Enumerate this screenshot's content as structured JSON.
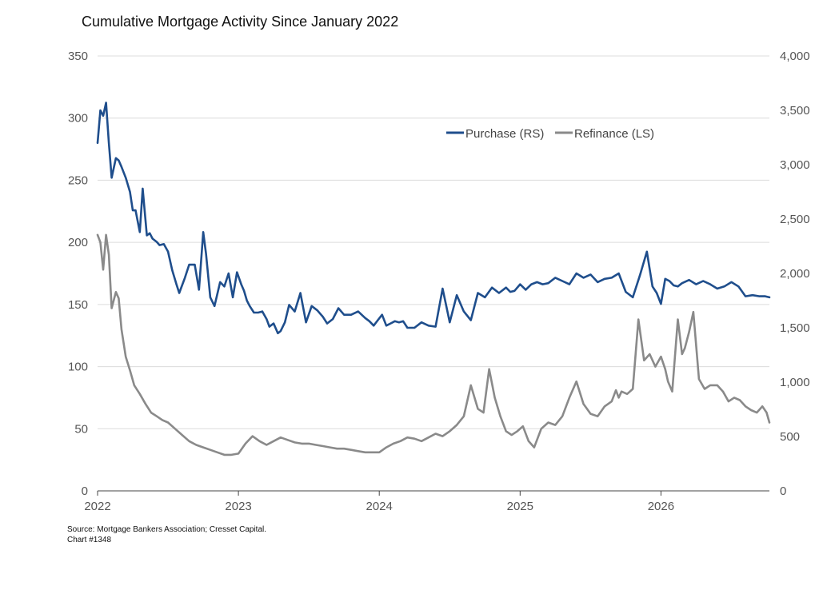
{
  "title": "Cumulative Mortgage Activity Since January 2022",
  "source": "Source: Mortgage Bankers Association; Cresset Capital.",
  "chart_number": "Chart #1348",
  "legend": {
    "purchase": "Purchase (RS)",
    "refinance": "Refinance (LS)",
    "position": "top-right"
  },
  "colors": {
    "purchase": "#1f4e8c",
    "refinance": "#8a8a8a",
    "grid": "#dcdcdc",
    "axis": "#555555"
  },
  "chart_data": {
    "type": "line",
    "title": "Cumulative Mortgage Activity Since January 2022",
    "x_ticks": [
      "2022",
      "2023",
      "2024",
      "2025",
      "2026"
    ],
    "xlim": [
      2022.0,
      2026.77
    ],
    "left_axis": {
      "ticks": [
        "0",
        "50",
        "100",
        "150",
        "200",
        "250",
        "300",
        "350"
      ],
      "ylim": [
        0,
        350
      ]
    },
    "right_axis": {
      "ticks": [
        "0",
        "500",
        "1,000",
        "1,500",
        "2,000",
        "2,500",
        "3,000",
        "3,500",
        "4,000"
      ],
      "ylim": [
        0,
        4000
      ]
    },
    "grid": "horizontal",
    "series": [
      {
        "name": "Purchase (RS)",
        "axis": "right",
        "x": [
          2022.0,
          2022.02,
          2022.04,
          2022.06,
          2022.08,
          2022.1,
          2022.13,
          2022.15,
          2022.17,
          2022.2,
          2022.23,
          2022.25,
          2022.27,
          2022.3,
          2022.32,
          2022.35,
          2022.37,
          2022.39,
          2022.42,
          2022.44,
          2022.47,
          2022.5,
          2022.53,
          2022.56,
          2022.58,
          2022.62,
          2022.65,
          2022.69,
          2022.72,
          2022.75,
          2022.77,
          2022.8,
          2022.83,
          2022.87,
          2022.9,
          2022.93,
          2022.96,
          2022.99,
          2023.02,
          2023.04,
          2023.06,
          2023.08,
          2023.11,
          2023.14,
          2023.17,
          2023.2,
          2023.22,
          2023.25,
          2023.28,
          2023.3,
          2023.33,
          2023.36,
          2023.4,
          2023.44,
          2023.48,
          2023.52,
          2023.56,
          2023.6,
          2023.63,
          2023.67,
          2023.71,
          2023.75,
          2023.8,
          2023.85,
          2023.9,
          2023.93,
          2023.96,
          2023.99,
          2024.02,
          2024.05,
          2024.08,
          2024.11,
          2024.14,
          2024.17,
          2024.2,
          2024.25,
          2024.3,
          2024.35,
          2024.4,
          2024.45,
          2024.5,
          2024.55,
          2024.6,
          2024.65,
          2024.7,
          2024.75,
          2024.8,
          2024.85,
          2024.9,
          2024.93,
          2024.96,
          2025.0,
          2025.04,
          2025.08,
          2025.12,
          2025.16,
          2025.2,
          2025.25,
          2025.3,
          2025.35,
          2025.4,
          2025.45,
          2025.5,
          2025.55,
          2025.6,
          2025.65,
          2025.7,
          2025.75,
          2025.8,
          2025.85,
          2025.9,
          2025.94,
          2025.97,
          2026.0,
          2026.03,
          2026.06,
          2026.09,
          2026.12,
          2026.15,
          2026.2,
          2026.25,
          2026.3,
          2026.35,
          2026.4,
          2026.45,
          2026.5,
          2026.55,
          2026.6,
          2026.65,
          2026.7,
          2026.74,
          2026.77
        ],
        "y": [
          3200,
          3500,
          3450,
          3570,
          3200,
          2880,
          3060,
          3040,
          2980,
          2880,
          2750,
          2580,
          2580,
          2380,
          2780,
          2350,
          2370,
          2320,
          2290,
          2260,
          2270,
          2200,
          2030,
          1900,
          1820,
          1960,
          2080,
          2080,
          1850,
          2380,
          2180,
          1780,
          1700,
          1920,
          1880,
          2000,
          1780,
          2010,
          1900,
          1840,
          1750,
          1700,
          1640,
          1640,
          1650,
          1580,
          1510,
          1540,
          1450,
          1470,
          1550,
          1710,
          1650,
          1820,
          1550,
          1700,
          1660,
          1600,
          1540,
          1580,
          1680,
          1620,
          1620,
          1650,
          1590,
          1560,
          1520,
          1570,
          1620,
          1520,
          1540,
          1560,
          1550,
          1560,
          1500,
          1500,
          1550,
          1520,
          1510,
          1860,
          1550,
          1800,
          1650,
          1570,
          1820,
          1780,
          1870,
          1820,
          1870,
          1830,
          1840,
          1900,
          1850,
          1900,
          1920,
          1900,
          1910,
          1960,
          1930,
          1900,
          2000,
          1960,
          1990,
          1920,
          1950,
          1960,
          2000,
          1830,
          1780,
          1980,
          2200,
          1880,
          1820,
          1720,
          1950,
          1930,
          1890,
          1880,
          1910,
          1940,
          1900,
          1930,
          1900,
          1860,
          1880,
          1920,
          1880,
          1790,
          1800,
          1790,
          1790,
          1780
        ]
      },
      {
        "name": "Refinance (LS)",
        "axis": "left",
        "x": [
          2022.0,
          2022.02,
          2022.04,
          2022.06,
          2022.08,
          2022.1,
          2022.13,
          2022.15,
          2022.17,
          2022.2,
          2022.23,
          2022.26,
          2022.3,
          2022.34,
          2022.38,
          2022.42,
          2022.46,
          2022.5,
          2022.55,
          2022.6,
          2022.65,
          2022.7,
          2022.75,
          2022.8,
          2022.85,
          2022.9,
          2022.95,
          2023.0,
          2023.05,
          2023.1,
          2023.15,
          2023.2,
          2023.25,
          2023.3,
          2023.35,
          2023.4,
          2023.45,
          2023.5,
          2023.55,
          2023.6,
          2023.65,
          2023.7,
          2023.75,
          2023.8,
          2023.85,
          2023.9,
          2023.95,
          2024.0,
          2024.05,
          2024.1,
          2024.15,
          2024.2,
          2024.25,
          2024.3,
          2024.35,
          2024.4,
          2024.45,
          2024.5,
          2024.55,
          2024.6,
          2024.65,
          2024.7,
          2024.74,
          2024.78,
          2024.82,
          2024.86,
          2024.9,
          2024.94,
          2024.98,
          2025.02,
          2025.06,
          2025.1,
          2025.15,
          2025.2,
          2025.25,
          2025.3,
          2025.35,
          2025.4,
          2025.45,
          2025.5,
          2025.55,
          2025.6,
          2025.65,
          2025.68,
          2025.7,
          2025.72,
          2025.76,
          2025.8,
          2025.84,
          2025.88,
          2025.92,
          2025.96,
          2026.0,
          2026.03,
          2026.05,
          2026.08,
          2026.12,
          2026.15,
          2026.17,
          2026.2,
          2026.23,
          2026.27,
          2026.31,
          2026.35,
          2026.4,
          2026.44,
          2026.48,
          2026.52,
          2026.56,
          2026.6,
          2026.64,
          2026.68,
          2026.72,
          2026.75,
          2026.77
        ],
        "y": [
          206,
          200,
          178,
          206,
          190,
          147,
          160,
          155,
          130,
          108,
          97,
          85,
          78,
          70,
          63,
          60,
          57,
          55,
          50,
          45,
          40,
          37,
          35,
          33,
          31,
          29,
          29,
          30,
          38,
          44,
          40,
          37,
          40,
          43,
          41,
          39,
          38,
          38,
          37,
          36,
          35,
          34,
          34,
          33,
          32,
          31,
          31,
          31,
          35,
          38,
          40,
          43,
          42,
          40,
          43,
          46,
          44,
          48,
          53,
          60,
          85,
          66,
          63,
          98,
          75,
          60,
          48,
          45,
          48,
          52,
          40,
          35,
          50,
          55,
          53,
          60,
          75,
          88,
          70,
          62,
          60,
          68,
          72,
          81,
          75,
          80,
          78,
          82,
          138,
          105,
          110,
          100,
          108,
          98,
          88,
          80,
          138,
          110,
          115,
          128,
          144,
          90,
          82,
          85,
          85,
          80,
          72,
          75,
          73,
          68,
          65,
          63,
          68,
          63,
          55
        ]
      }
    ]
  }
}
